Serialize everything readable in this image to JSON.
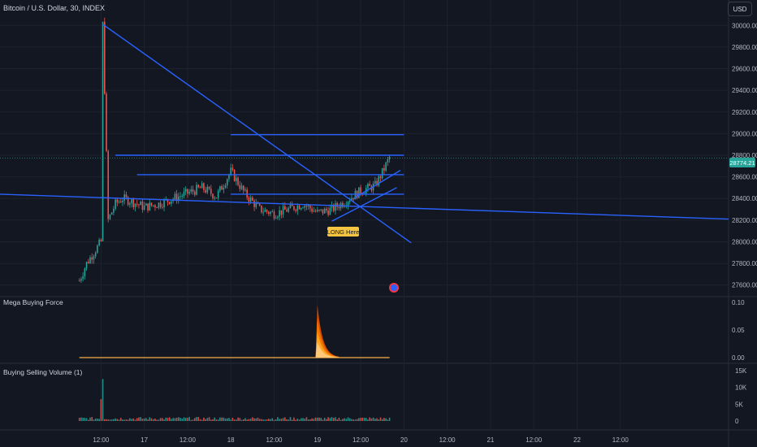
{
  "header": {
    "symbol_title": "Bitcoin / U.S. Dollar, 30, INDEX",
    "currency_button": "USD"
  },
  "colors": {
    "background": "#131722",
    "up": "#26a69a",
    "down": "#ef5350",
    "trendline": "#2962ff",
    "price_tag": "#26a69a",
    "annotation_bg": "#f5c542"
  },
  "annotation": {
    "text": "LONG Here"
  },
  "chart_data": [
    {
      "type": "candlestick",
      "title": "Bitcoin / U.S. Dollar, 30, INDEX",
      "ylim": [
        27500,
        30100
      ],
      "yticks": [
        27600,
        27800,
        28000,
        28200,
        28400,
        28600,
        28800,
        29000,
        29200,
        29400,
        29600,
        29800,
        30000
      ],
      "ytick_labels": [
        "27600.00",
        "27800.00",
        "28000.00",
        "28200.00",
        "28400.00",
        "28600.00",
        "28800.00",
        "29000.00",
        "29200.00",
        "29400.00",
        "29600.00",
        "29800.00",
        "30000.00"
      ],
      "x_range_hours": [
        -28,
        174
      ],
      "xticks": [
        0,
        12,
        24,
        36,
        48,
        60,
        72,
        84,
        96,
        108,
        120,
        132,
        144,
        156,
        168
      ],
      "xtick_labels": [
        "12:00",
        "17",
        "12:00",
        "18",
        "12:00",
        "19",
        "12:00",
        "20",
        "12:00",
        "21",
        "12:00",
        "22",
        "12:00"
      ],
      "xtick_hours": [
        0,
        12,
        24,
        36,
        48,
        60,
        72,
        84,
        96,
        108,
        120,
        132,
        144
      ],
      "last_price": 28774.21,
      "last_price_label": "28774.21",
      "ohlc_anchor_points": [
        [
          -6,
          27640
        ],
        [
          -4,
          27800
        ],
        [
          -2,
          27900
        ],
        [
          0,
          28000
        ],
        [
          0.5,
          30010
        ],
        [
          2,
          28200
        ],
        [
          4,
          28350
        ],
        [
          6,
          28400
        ],
        [
          8,
          28380
        ],
        [
          12,
          28320
        ],
        [
          16,
          28350
        ],
        [
          20,
          28400
        ],
        [
          24,
          28450
        ],
        [
          28,
          28500
        ],
        [
          32,
          28420
        ],
        [
          36,
          28650
        ],
        [
          40,
          28440
        ],
        [
          44,
          28300
        ],
        [
          48,
          28260
        ],
        [
          52,
          28300
        ],
        [
          56,
          28350
        ],
        [
          60,
          28270
        ],
        [
          64,
          28300
        ],
        [
          68,
          28380
        ],
        [
          72,
          28470
        ],
        [
          76,
          28520
        ],
        [
          78,
          28640
        ],
        [
          80,
          28780
        ]
      ],
      "trendlines": [
        {
          "name": "descending-line",
          "from": [
            0.5,
            30010
          ],
          "to": [
            86,
            27990
          ]
        },
        {
          "name": "long-support-line",
          "from": [
            -28,
            28440
          ],
          "to": [
            174,
            28210
          ]
        },
        {
          "name": "resistance-29000",
          "from": [
            36,
            28990
          ],
          "to": [
            84,
            28990
          ]
        },
        {
          "name": "resistance-28800",
          "from": [
            4,
            28800
          ],
          "to": [
            84,
            28800
          ]
        },
        {
          "name": "resistance-28620",
          "from": [
            10,
            28620
          ],
          "to": [
            84,
            28620
          ]
        },
        {
          "name": "resistance-28440",
          "from": [
            36,
            28440
          ],
          "to": [
            84,
            28440
          ]
        },
        {
          "name": "channel-lower",
          "from": [
            64,
            28190
          ],
          "to": [
            82,
            28500
          ]
        },
        {
          "name": "channel-upper",
          "from": [
            70,
            28400
          ],
          "to": [
            83,
            28660
          ]
        }
      ]
    },
    {
      "type": "area",
      "title": "Mega Buying Force",
      "ylim": [
        0,
        0.1
      ],
      "yticks": [
        0,
        0.05,
        0.1
      ],
      "ytick_labels": [
        "0.00",
        "0.05",
        "0.10"
      ],
      "peak": {
        "x_hours": 60,
        "value": 0.095
      },
      "baseline_value": 0.0
    },
    {
      "type": "bar",
      "title": "Buying Selling Volume (1)",
      "ylim": [
        0,
        15000
      ],
      "yticks": [
        0,
        5000,
        10000,
        15000
      ],
      "ytick_labels": [
        "0",
        "5K",
        "10K",
        "15K"
      ],
      "spike": {
        "x_hours": 0.5,
        "value": 12500
      }
    }
  ]
}
